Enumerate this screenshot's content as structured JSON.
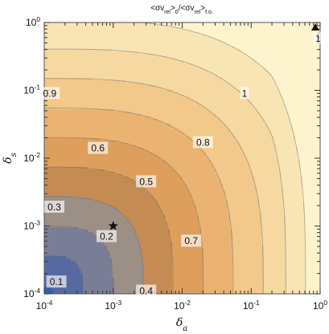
{
  "chart_data": {
    "type": "contour",
    "title": "<σv_rel>_0/<σv_rel>_f.o.",
    "xlabel": "δ_a",
    "ylabel": "δ_s",
    "x_scale": "log",
    "y_scale": "log",
    "xlim": [
      0.0001,
      1
    ],
    "ylim": [
      0.0001,
      1
    ],
    "x_tick_labels": [
      "10^-4",
      "10^-3",
      "10^-2",
      "10^-1",
      "10^0"
    ],
    "y_tick_labels": [
      "10^-4",
      "10^-3",
      "10^-2",
      "10^-1",
      "10^0"
    ],
    "contour_levels": [
      0.1,
      0.2,
      0.3,
      0.4,
      0.5,
      0.6,
      0.7,
      0.8,
      0.9,
      1
    ],
    "contour_labels": [
      {
        "text": "0.1",
        "x": 0.00015,
        "y": 0.00015
      },
      {
        "text": "0.2",
        "x": 0.0008,
        "y": 0.0007
      },
      {
        "text": "0.3",
        "x": 0.00014,
        "y": 0.0019
      },
      {
        "text": "0.4",
        "x": 0.003,
        "y": 0.00011
      },
      {
        "text": "0.5",
        "x": 0.003,
        "y": 0.0045
      },
      {
        "text": "0.6",
        "x": 0.0006,
        "y": 0.014
      },
      {
        "text": "0.7",
        "x": 0.0135,
        "y": 0.0006
      },
      {
        "text": "0.8",
        "x": 0.02,
        "y": 0.017
      },
      {
        "text": "0.9",
        "x": 0.00012,
        "y": 0.09
      },
      {
        "text": "1",
        "x": 0.08,
        "y": 0.09
      },
      {
        "text": "1",
        "x": 0.93,
        "y": 0.58
      }
    ],
    "markers": [
      {
        "symbol": "star",
        "x": 0.001,
        "y": 0.001
      },
      {
        "symbol": "triangle",
        "x": 0.85,
        "y": 0.85
      }
    ],
    "colors": {
      "max": "#fdf3cc",
      "min": "#3b5fa6"
    }
  }
}
